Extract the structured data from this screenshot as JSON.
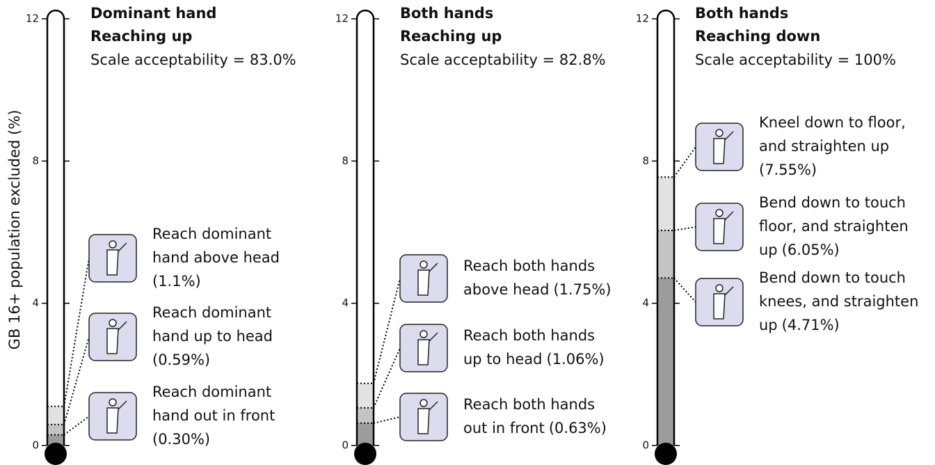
{
  "chart_data": [
    {
      "type": "thermometer",
      "ylabel": "GB 16+ population excluded (%)",
      "title_lines": [
        "Dominant hand",
        "Reaching up"
      ],
      "subtitle": "Scale acceptability = 83.0%",
      "ylim": [
        0,
        12
      ],
      "yticks": [
        0,
        4,
        8,
        12
      ],
      "items": [
        {
          "lines": [
            "Reach dominant",
            "hand above head"
          ],
          "value": 1.1,
          "value_label": "(1.1%)",
          "color": "#e2e2e2"
        },
        {
          "lines": [
            "Reach dominant",
            "hand up to head"
          ],
          "value": 0.59,
          "value_label": "(0.59%)",
          "color": "#c4c4c4"
        },
        {
          "lines": [
            "Reach dominant",
            "hand out in front"
          ],
          "value": 0.3,
          "value_label": "(0.30%)",
          "color": "#9c9c9c"
        }
      ]
    },
    {
      "type": "thermometer",
      "title_lines": [
        "Both hands",
        "Reaching up"
      ],
      "subtitle": "Scale acceptability = 82.8%",
      "ylim": [
        0,
        12
      ],
      "yticks": [
        0,
        4,
        8,
        12
      ],
      "items": [
        {
          "lines": [
            "Reach both hands",
            "above head"
          ],
          "value": 1.75,
          "value_label": "(1.75%)",
          "color": "#e2e2e2"
        },
        {
          "lines": [
            "Reach both hands",
            "up to head"
          ],
          "value": 1.06,
          "value_label": "(1.06%)",
          "color": "#c4c4c4"
        },
        {
          "lines": [
            "Reach both hands",
            "out in front"
          ],
          "value": 0.63,
          "value_label": "(0.63%)",
          "color": "#9c9c9c"
        }
      ]
    },
    {
      "type": "thermometer",
      "title_lines": [
        "Both hands",
        "Reaching down"
      ],
      "subtitle": "Scale acceptability = 100%",
      "ylim": [
        0,
        12
      ],
      "yticks": [
        0,
        4,
        8,
        12
      ],
      "items": [
        {
          "lines": [
            "Kneel down to floor,",
            "and straighten up"
          ],
          "value": 7.55,
          "value_label": "(7.55%)",
          "color": "#e2e2e2"
        },
        {
          "lines": [
            "Bend down to touch",
            "floor, and straighten",
            "up"
          ],
          "value": 6.05,
          "value_label": "(6.05%)",
          "color": "#c4c4c4"
        },
        {
          "lines": [
            "Bend down to touch",
            "knees, and straighten",
            "up"
          ],
          "value": 4.71,
          "value_label": "(4.71%)",
          "color": "#9c9c9c"
        }
      ]
    }
  ]
}
